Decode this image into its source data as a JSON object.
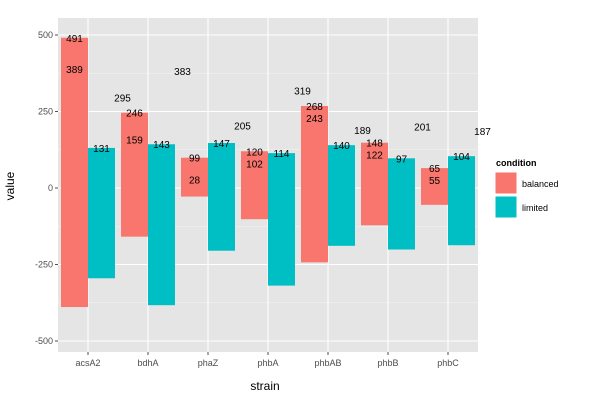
{
  "chart_data": {
    "type": "bar",
    "title": "",
    "xlabel": "strain",
    "ylabel": "value",
    "ylim": [
      -540,
      540
    ],
    "yticks": [
      -500,
      -250,
      0,
      250,
      500
    ],
    "categories": [
      "acsA2",
      "bdhA",
      "phaZ",
      "phbA",
      "phbAB",
      "phbB",
      "phbC"
    ],
    "legend": {
      "title": "condition",
      "placement": "right"
    },
    "series": [
      {
        "name": "balanced",
        "color": "#F8766D",
        "positive": [
          491,
          246,
          99,
          120,
          268,
          148,
          65
        ],
        "negative": [
          -389,
          -159,
          -28,
          -102,
          -243,
          -122,
          -55
        ]
      },
      {
        "name": "limited",
        "color": "#00BFC4",
        "positive": [
          131,
          143,
          147,
          114,
          140,
          97,
          104
        ],
        "negative": [
          -295,
          -383,
          -205,
          -319,
          -189,
          -201,
          -187
        ]
      }
    ],
    "grid": true,
    "panel_color": "#E5E5E5"
  }
}
